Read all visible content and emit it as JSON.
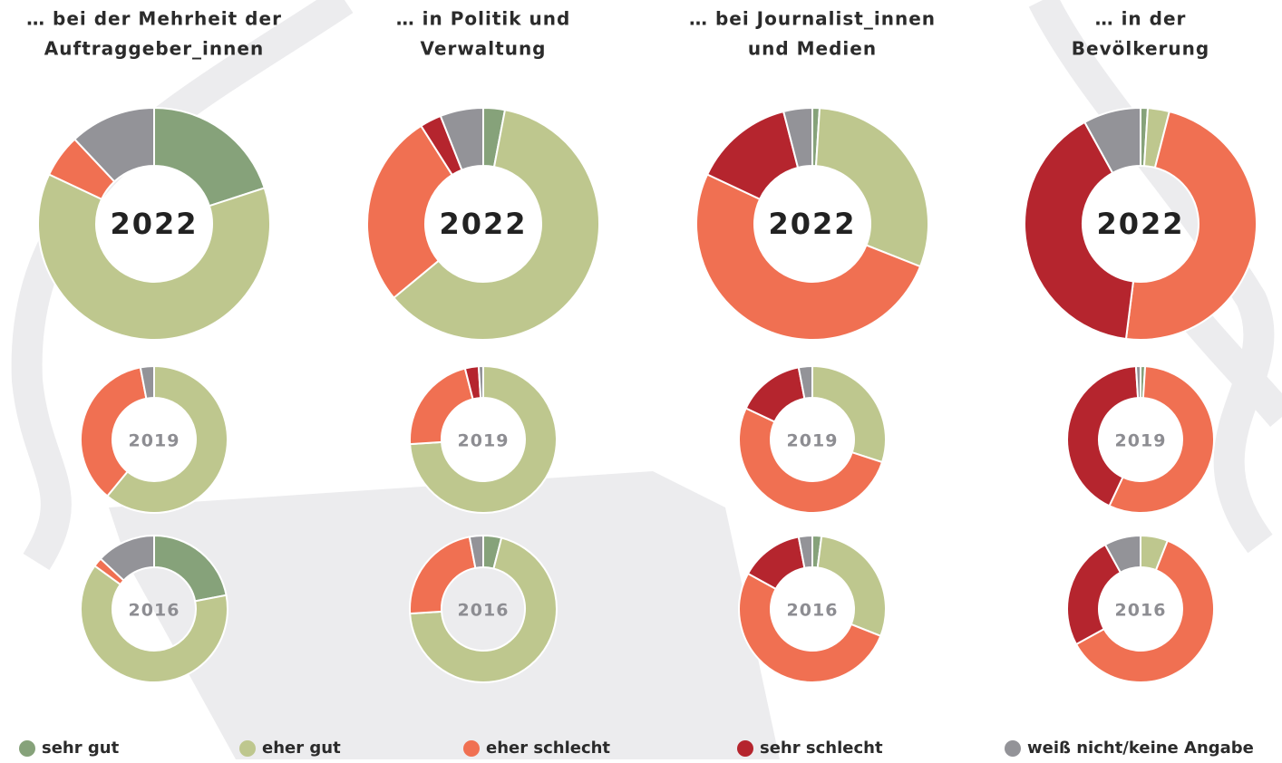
{
  "categories": [
    "sehr gut",
    "eher gut",
    "eher schlecht",
    "sehr schlecht",
    "weiß nicht/keine Angabe"
  ],
  "colors": [
    "#86a27a",
    "#bec78e",
    "#f07052",
    "#b5252e",
    "#939398"
  ],
  "chart_data": [
    {
      "type": "pie",
      "title": [
        "… bei der Mehrheit der",
        "Auftraggeber_innen"
      ],
      "label": "2022",
      "values": [
        20,
        62,
        6,
        0,
        12
      ]
    },
    {
      "type": "pie",
      "label": "2019",
      "values": [
        0,
        61,
        36,
        0,
        3
      ]
    },
    {
      "type": "pie",
      "label": "2016",
      "values": [
        22,
        63,
        2,
        0,
        13
      ]
    },
    {
      "type": "pie",
      "title": [
        "… in Politik und",
        "Verwaltung"
      ],
      "label": "2022",
      "values": [
        3,
        61,
        27,
        3,
        6
      ]
    },
    {
      "type": "pie",
      "label": "2019",
      "values": [
        0,
        74,
        22,
        3,
        1
      ]
    },
    {
      "type": "pie",
      "label": "2016",
      "values": [
        4,
        70,
        23,
        0,
        3
      ]
    },
    {
      "type": "pie",
      "title": [
        "… bei Journalist_innen",
        "und Medien"
      ],
      "label": "2022",
      "values": [
        1,
        30,
        51,
        14,
        4
      ]
    },
    {
      "type": "pie",
      "label": "2019",
      "values": [
        0,
        30,
        52,
        15,
        3
      ]
    },
    {
      "type": "pie",
      "label": "2016",
      "values": [
        2,
        29,
        52,
        14,
        3
      ]
    },
    {
      "type": "pie",
      "title": [
        "… in der",
        "Bevölkerung"
      ],
      "label": "2022",
      "values": [
        1,
        3,
        48,
        40,
        8
      ]
    },
    {
      "type": "pie",
      "label": "2019",
      "values": [
        1,
        0,
        56,
        42,
        1
      ]
    },
    {
      "type": "pie",
      "label": "2016",
      "values": [
        0,
        6,
        61,
        25,
        8
      ]
    }
  ]
}
